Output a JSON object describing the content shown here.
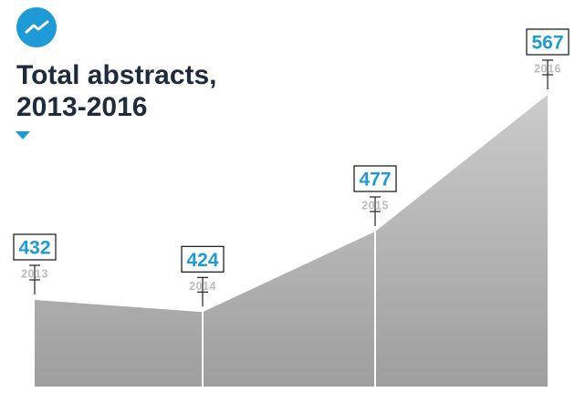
{
  "header": {
    "icon": "trend-line-icon",
    "title_lines": [
      "Total abstracts,",
      "2013-2016"
    ],
    "pointer_icon": "triangle-down-icon",
    "accent_color": "#1e9ad6"
  },
  "chart_data": {
    "type": "area",
    "title": "Total abstracts, 2013-2016",
    "categories": [
      "2013",
      "2014",
      "2015",
      "2016"
    ],
    "values": [
      432,
      424,
      477,
      567
    ],
    "data_labels": [
      "432",
      "424",
      "477",
      "567"
    ],
    "ylim": [
      0,
      600
    ],
    "grid": false,
    "legend": "none",
    "fill_color": "#c4c4c4",
    "divider_color": "#ffffff"
  }
}
